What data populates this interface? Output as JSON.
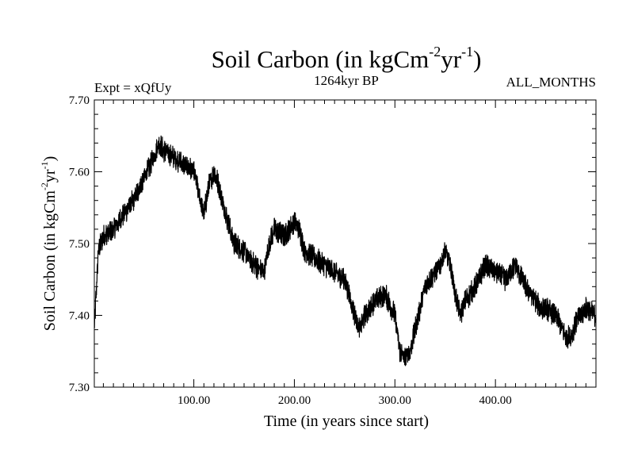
{
  "chart_data": {
    "type": "line",
    "title": "Soil Carbon (in kgCm",
    "title_sup1": "-2",
    "title_mid": "yr",
    "title_sup2": "-1",
    "title_end": ")",
    "subtitle_left": "Expt = xQfUy",
    "subtitle_center": "1264kyr BP",
    "subtitle_right": "ALL_MONTHS",
    "xlabel": "Time (in years since start)",
    "ylabel": "Soil Carbon (in kgCm",
    "ylabel_sup1": "-2",
    "ylabel_mid": "yr",
    "ylabel_sup2": "-1",
    "ylabel_end": ")",
    "xlim": [
      1,
      500
    ],
    "ylim": [
      7.3,
      7.7
    ],
    "xticks": [
      100,
      200,
      300,
      400
    ],
    "xtick_labels": [
      "100.00",
      "200.00",
      "300.00",
      "400.00"
    ],
    "yticks": [
      7.3,
      7.4,
      7.5,
      7.6,
      7.7
    ],
    "ytick_labels": [
      "7.30",
      "7.40",
      "7.50",
      "7.60",
      "7.70"
    ],
    "line_color": "#000000",
    "series": [
      {
        "name": "Soil Carbon",
        "x": [
          1,
          5,
          10,
          20,
          30,
          40,
          50,
          60,
          65,
          70,
          80,
          90,
          100,
          110,
          115,
          120,
          125,
          130,
          140,
          150,
          160,
          170,
          175,
          180,
          190,
          200,
          205,
          210,
          220,
          230,
          240,
          250,
          260,
          265,
          270,
          280,
          290,
          300,
          305,
          310,
          315,
          320,
          330,
          340,
          345,
          350,
          355,
          360,
          365,
          370,
          380,
          390,
          400,
          410,
          420,
          430,
          440,
          445,
          450,
          460,
          470,
          475,
          480,
          490,
          500
        ],
        "values": [
          7.38,
          7.49,
          7.51,
          7.52,
          7.54,
          7.56,
          7.59,
          7.62,
          7.64,
          7.63,
          7.62,
          7.61,
          7.6,
          7.54,
          7.58,
          7.6,
          7.58,
          7.55,
          7.5,
          7.49,
          7.47,
          7.46,
          7.5,
          7.52,
          7.51,
          7.53,
          7.52,
          7.49,
          7.48,
          7.47,
          7.46,
          7.45,
          7.4,
          7.38,
          7.4,
          7.42,
          7.43,
          7.4,
          7.35,
          7.34,
          7.35,
          7.38,
          7.44,
          7.46,
          7.47,
          7.49,
          7.47,
          7.43,
          7.4,
          7.42,
          7.44,
          7.47,
          7.46,
          7.45,
          7.47,
          7.44,
          7.42,
          7.41,
          7.41,
          7.4,
          7.37,
          7.37,
          7.39,
          7.41,
          7.4
        ]
      }
    ]
  }
}
